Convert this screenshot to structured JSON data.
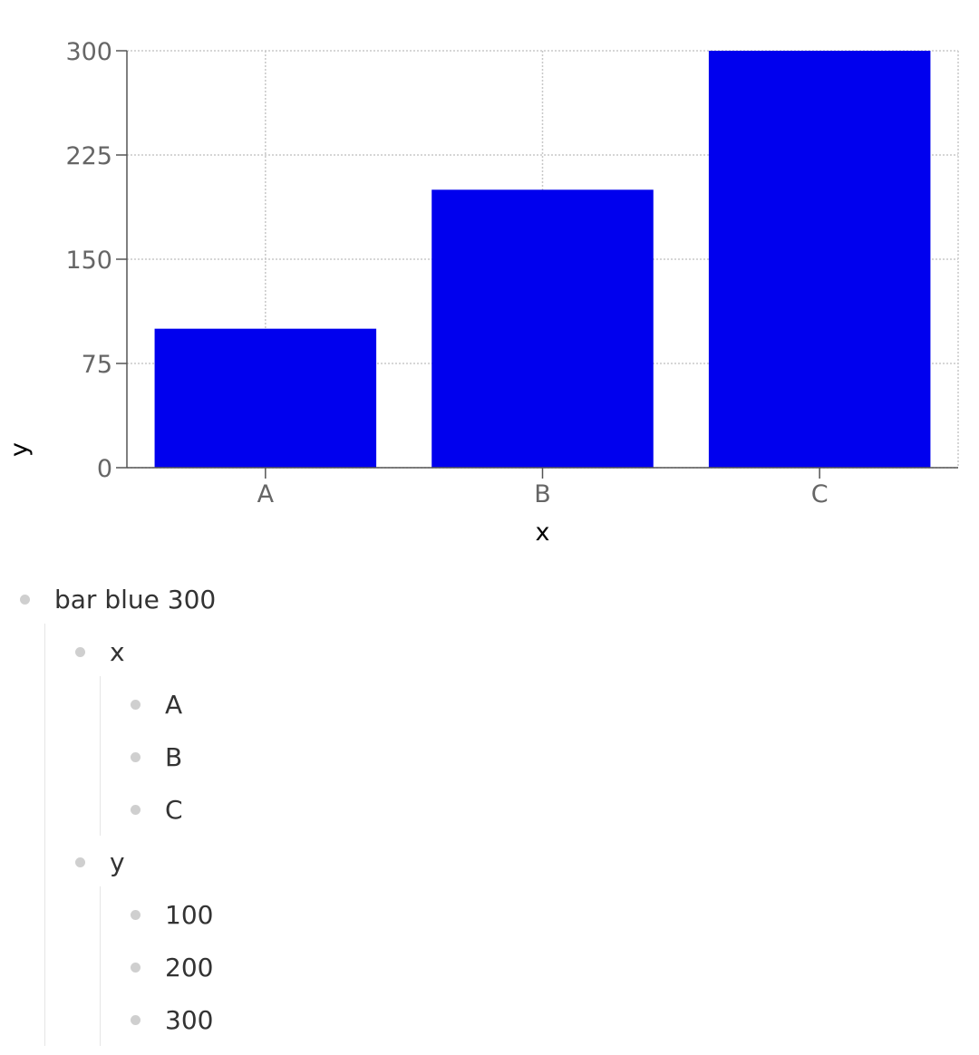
{
  "chart_data": {
    "type": "bar",
    "categories": [
      "A",
      "B",
      "C"
    ],
    "values": [
      100,
      200,
      300
    ],
    "xlabel": "x",
    "ylabel": "y",
    "ylim": [
      0,
      300
    ],
    "yticks": [
      0,
      75,
      150,
      225,
      300
    ],
    "bar_color": "#0000ee",
    "grid": true,
    "grid_color": "#c8c8c8"
  },
  "outline": {
    "root": {
      "label": "bar blue 300",
      "children": [
        {
          "label": "x",
          "children": [
            {
              "label": "A"
            },
            {
              "label": "B"
            },
            {
              "label": "C"
            }
          ]
        },
        {
          "label": "y",
          "children": [
            {
              "label": "100"
            },
            {
              "label": "200"
            },
            {
              "label": "300"
            }
          ]
        }
      ]
    }
  }
}
